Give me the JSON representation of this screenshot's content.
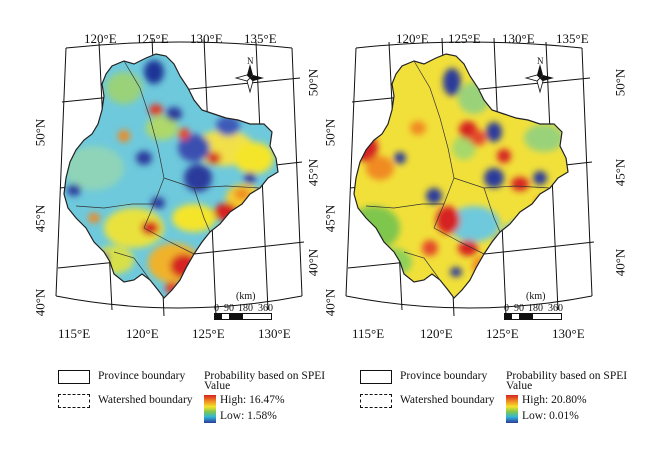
{
  "left_map": {
    "top_longitudes": [
      "120°E",
      "125°E",
      "130°E",
      "135°E"
    ],
    "bottom_longitudes": [
      "115°E",
      "120°E",
      "125°E",
      "130°E"
    ],
    "left_latitudes": [
      "50°N",
      "45°N",
      "40°N"
    ],
    "right_latitudes": [
      "50°N",
      "45°N",
      "40°N"
    ],
    "scale": {
      "unit": "(km)",
      "ticks": [
        "0",
        "90",
        "180",
        "360"
      ]
    },
    "north_label": "N"
  },
  "right_map": {
    "top_longitudes": [
      "120°E",
      "125°E",
      "130°E",
      "135°E"
    ],
    "bottom_longitudes": [
      "115°E",
      "120°E",
      "125°E",
      "130°E"
    ],
    "left_latitudes": [
      "50°N",
      "45°N",
      "40°N"
    ],
    "right_latitudes": [
      "50°N",
      "45°N",
      "40°N"
    ],
    "scale": {
      "unit": "(km)",
      "ticks": [
        "0",
        "90",
        "180",
        "360"
      ]
    },
    "north_label": "N"
  },
  "legend_left": {
    "province_boundary": "Province boundary",
    "watershed_boundary": "Watershed boundary",
    "title_line1": "Probability based on SPEI",
    "title_line2": "Value",
    "high": "High: 16.47%",
    "low": "Low: 1.58%"
  },
  "legend_right": {
    "province_boundary": "Province boundary",
    "watershed_boundary": "Watershed boundary",
    "title_line1": "Probability based on SPEI",
    "title_line2": "Value",
    "high": "High: 20.80%",
    "low": "Low: 0.01%"
  },
  "colors": {
    "high": "#d62020",
    "orange": "#f08a24",
    "yellow": "#f5e52c",
    "green": "#7fc64d",
    "cyan": "#33b6d6",
    "low": "#2a3b9c"
  }
}
